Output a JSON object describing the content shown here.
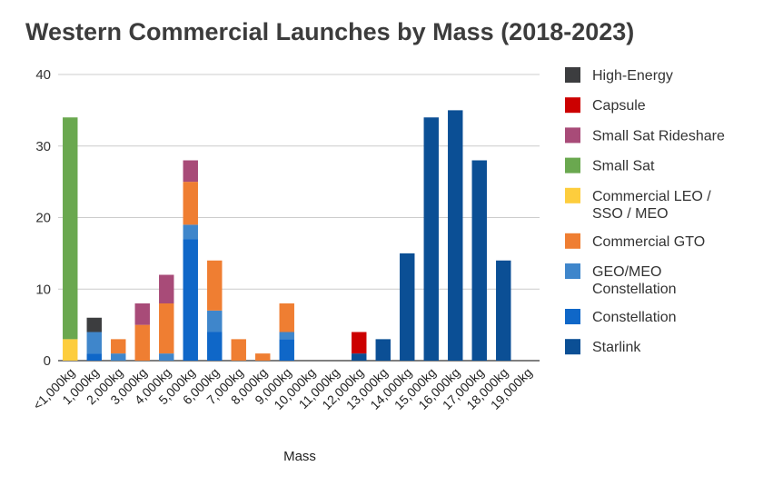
{
  "chart_data": {
    "type": "bar",
    "stacked": true,
    "title": "Western Commercial Launches by Mass (2018-2023)",
    "xlabel": "Mass",
    "ylabel": "",
    "ylim": [
      0,
      40
    ],
    "yticks": [
      0,
      10,
      20,
      30,
      40
    ],
    "grid": true,
    "legend_position": "right",
    "categories": [
      "<1,000kg",
      "1,000kg",
      "2,000kg",
      "3,000kg",
      "4,000kg",
      "5,000kg",
      "6,000kg",
      "7,000kg",
      "8,000kg",
      "9,000kg",
      "10,000kg",
      "11,000kg",
      "12,000kg",
      "13,000kg",
      "14,000kg",
      "15,000kg",
      "16,000kg",
      "17,000kg",
      "18,000kg",
      "19,000kg"
    ],
    "series": [
      {
        "name": "Starlink",
        "color": "#0b4f95",
        "values": [
          0,
          0,
          0,
          0,
          0,
          0,
          0,
          0,
          0,
          0,
          0,
          0,
          1,
          3,
          15,
          34,
          35,
          28,
          14,
          0
        ]
      },
      {
        "name": "Constellation",
        "color": "#0f67c8",
        "values": [
          0,
          1,
          0,
          0,
          0,
          17,
          4,
          0,
          0,
          3,
          0,
          0,
          0,
          0,
          0,
          0,
          0,
          0,
          0,
          0
        ]
      },
      {
        "name": "GEO/MEO Constellation",
        "color": "#3f86cb",
        "values": [
          0,
          3,
          1,
          0,
          1,
          2,
          3,
          0,
          0,
          1,
          0,
          0,
          0,
          0,
          0,
          0,
          0,
          0,
          0,
          0
        ]
      },
      {
        "name": "Commercial GTO",
        "color": "#ef7e32",
        "values": [
          0,
          0,
          2,
          5,
          7,
          6,
          7,
          3,
          1,
          4,
          0,
          0,
          0,
          0,
          0,
          0,
          0,
          0,
          0,
          0
        ]
      },
      {
        "name": "Commercial LEO / SSO / MEO",
        "color": "#fdcd3d",
        "values": [
          3,
          0,
          0,
          0,
          0,
          0,
          0,
          0,
          0,
          0,
          0,
          0,
          0,
          0,
          0,
          0,
          0,
          0,
          0,
          0
        ]
      },
      {
        "name": "Small Sat",
        "color": "#6aa84f",
        "values": [
          31,
          0,
          0,
          0,
          0,
          0,
          0,
          0,
          0,
          0,
          0,
          0,
          0,
          0,
          0,
          0,
          0,
          0,
          0,
          0
        ]
      },
      {
        "name": "Small Sat Rideshare",
        "color": "#a84b78",
        "values": [
          0,
          0,
          0,
          3,
          4,
          3,
          0,
          0,
          0,
          0,
          0,
          0,
          0,
          0,
          0,
          0,
          0,
          0,
          0,
          0
        ]
      },
      {
        "name": "Capsule",
        "color": "#cc0000",
        "values": [
          0,
          0,
          0,
          0,
          0,
          0,
          0,
          0,
          0,
          0,
          0,
          0,
          3,
          0,
          0,
          0,
          0,
          0,
          0,
          0
        ]
      },
      {
        "name": "High-Energy",
        "color": "#3c3d3f",
        "values": [
          0,
          2,
          0,
          0,
          0,
          0,
          0,
          0,
          0,
          0,
          0,
          0,
          0,
          0,
          0,
          0,
          0,
          0,
          0,
          0
        ]
      }
    ],
    "legend_order": [
      "High-Energy",
      "Capsule",
      "Small Sat Rideshare",
      "Small Sat",
      "Commercial LEO / SSO / MEO",
      "Commercial GTO",
      "GEO/MEO Constellation",
      "Constellation",
      "Starlink"
    ],
    "legend_display": {
      "Commercial LEO / SSO / MEO": [
        "Commercial LEO /",
        "SSO / MEO"
      ],
      "GEO/MEO Constellation": [
        "GEO/MEO",
        "Constellation"
      ]
    }
  }
}
